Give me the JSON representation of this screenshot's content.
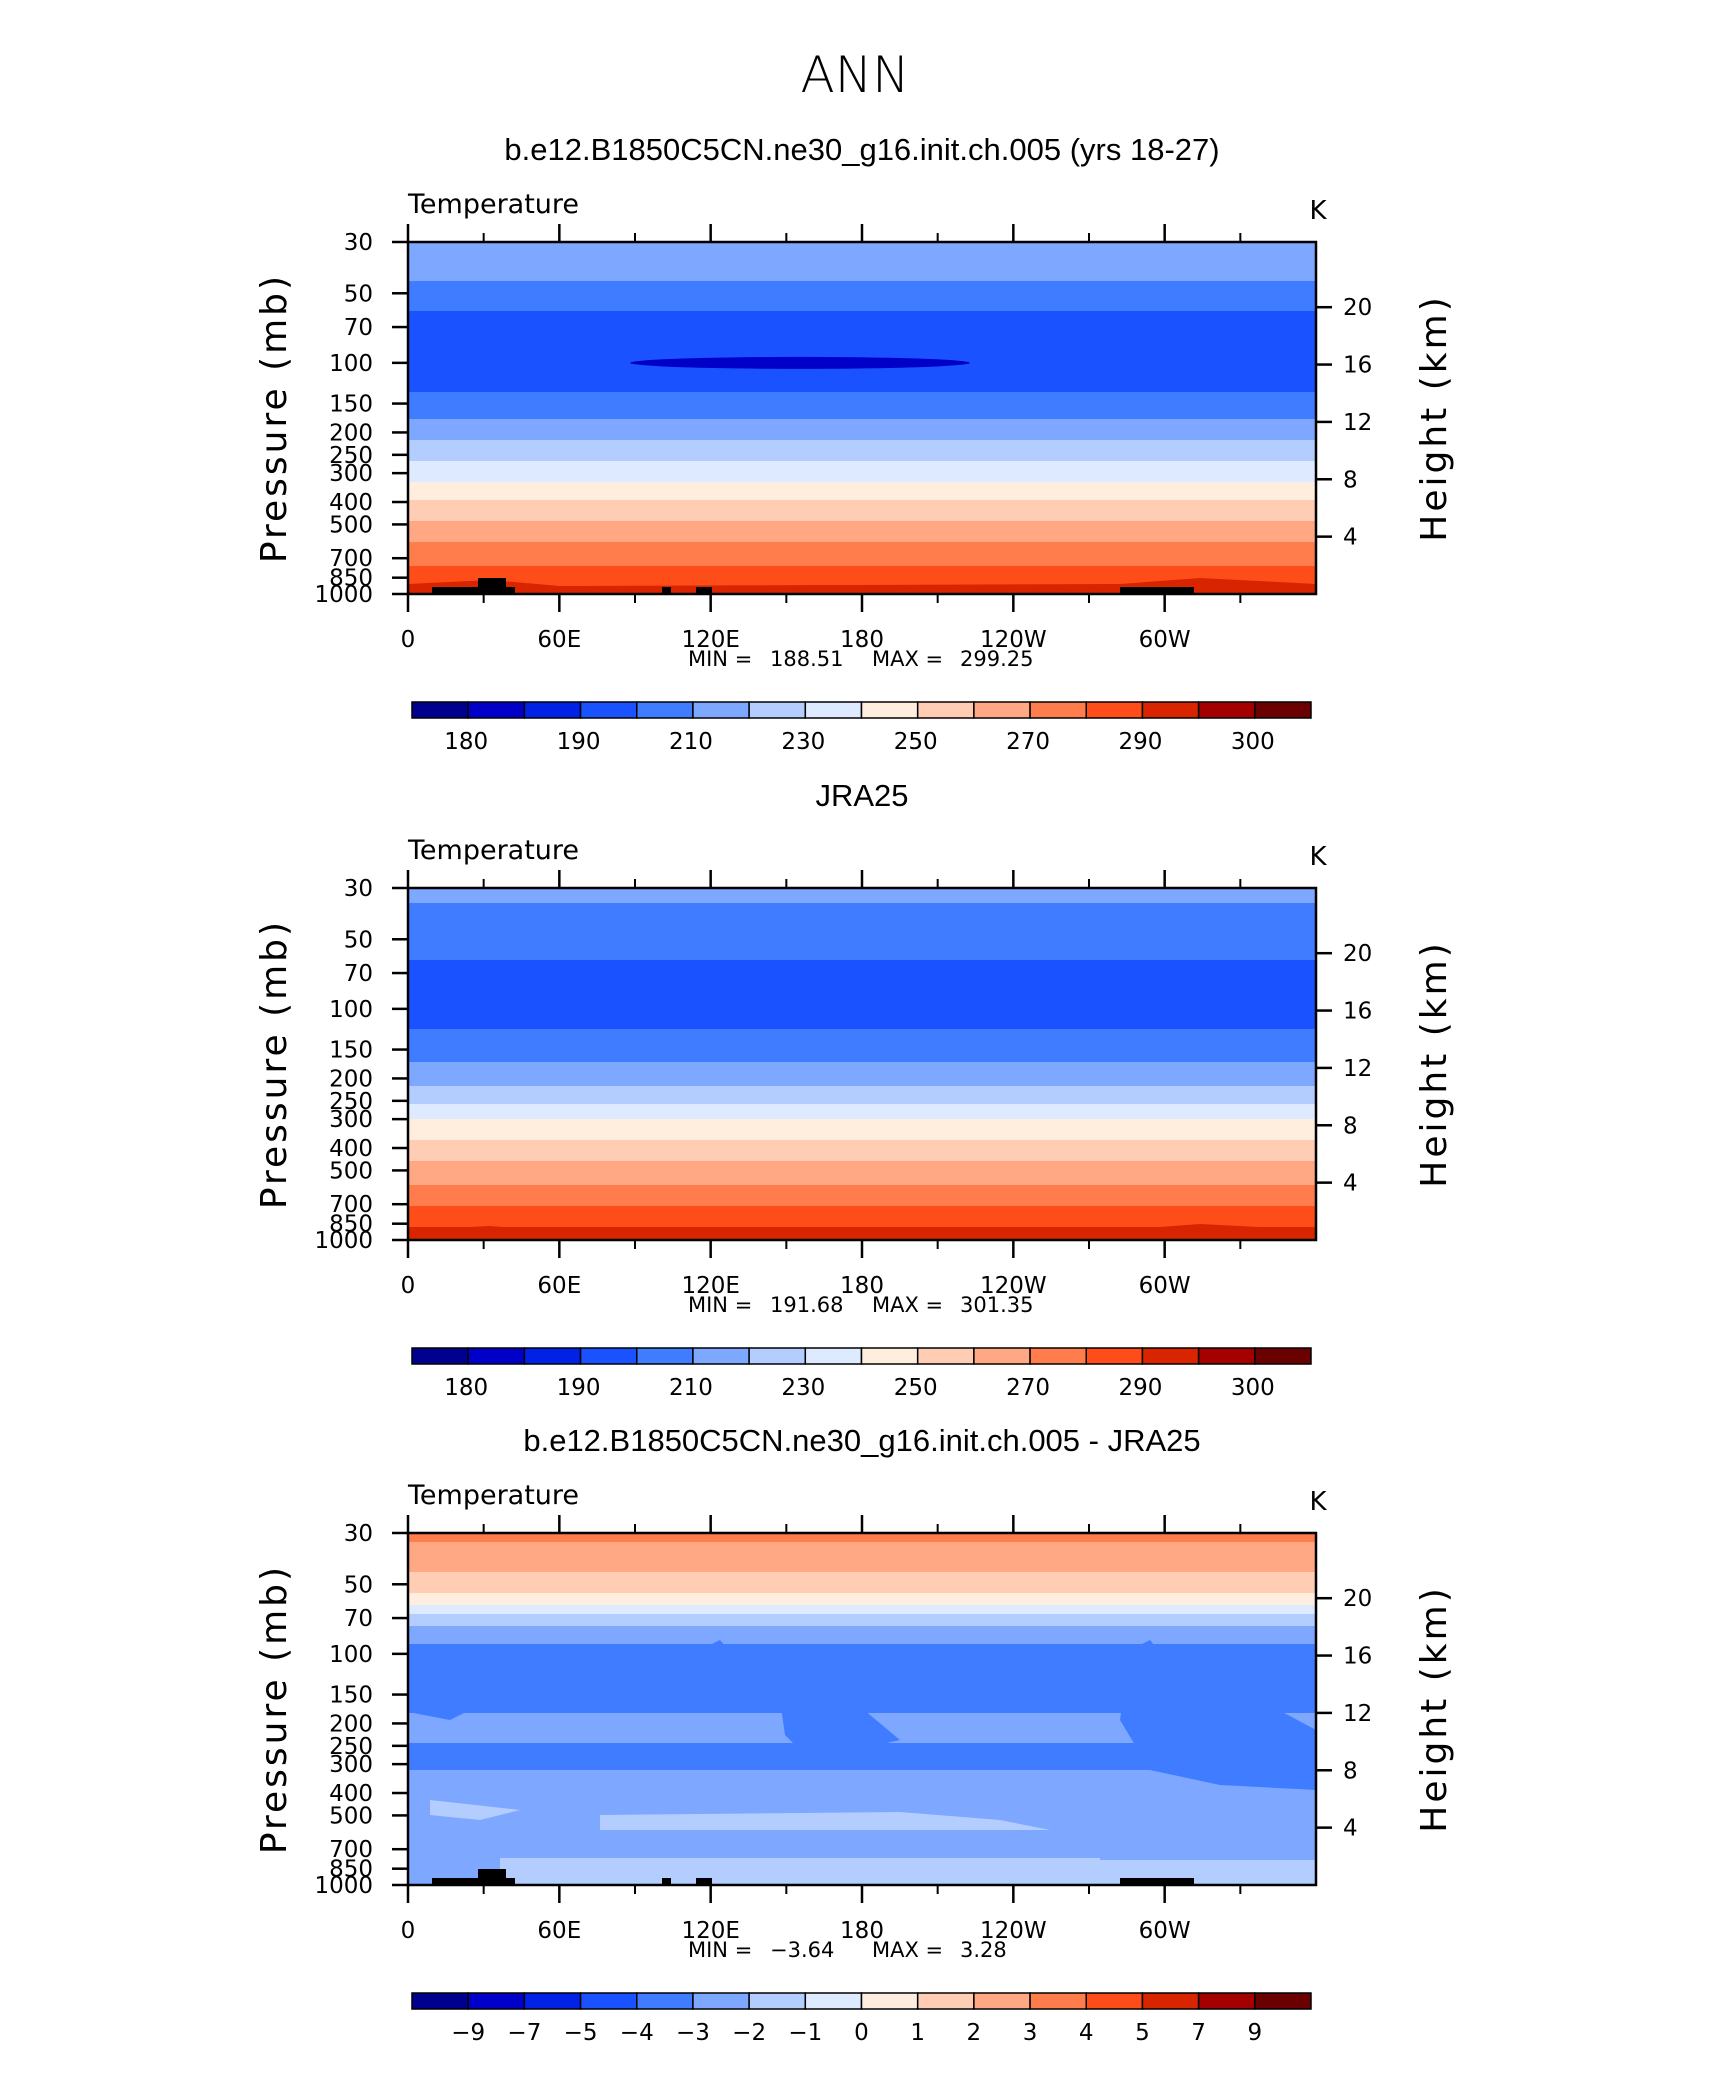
{
  "figure": {
    "title": "ANN"
  },
  "colors": {
    "temperature_scale": [
      "#00008f",
      "#0000c8",
      "#0022e6",
      "#1a52ff",
      "#3f7cff",
      "#7ea8ff",
      "#b3cdff",
      "#deeaff",
      "#ffeedd",
      "#ffcdb3",
      "#ffa883",
      "#ff7d4c",
      "#ff4d1a",
      "#d92400",
      "#a40000",
      "#6b0000"
    ],
    "land_mask": "#000000"
  },
  "chart_data": [
    {
      "type": "contour",
      "title": "b.e12.B1850C5CN.ne30_g16.init.ch.005 (yrs 18-27)",
      "variable": "Temperature",
      "units": "K",
      "ylabel": "Pressure (mb)",
      "y2label": "Height (km)",
      "x_ticks": [
        "0",
        "60E",
        "120E",
        "180",
        "120W",
        "60W"
      ],
      "y_ticks": [
        "30",
        "50",
        "70",
        "100",
        "150",
        "200",
        "250",
        "300",
        "400",
        "500",
        "700",
        "850",
        "1000"
      ],
      "y2_ticks": [
        "20",
        "16",
        "12",
        "8",
        "4"
      ],
      "stats": {
        "min_label": "MIN",
        "min": "188.51",
        "max_label": "MAX",
        "max": "299.25"
      },
      "colorbar_labels": [
        "180",
        "190",
        "210",
        "230",
        "250",
        "270",
        "290",
        "300"
      ],
      "colorbar_levels": [
        175,
        180,
        185,
        190,
        200,
        210,
        220,
        230,
        240,
        250,
        260,
        270,
        280,
        290,
        295,
        300,
        305
      ],
      "profile_p": [
        30,
        40,
        55,
        70,
        100,
        150,
        200,
        250,
        300,
        400,
        500,
        600,
        700,
        850,
        925,
        1000
      ],
      "profile_T": [
        214,
        213,
        202,
        196,
        194,
        202,
        216,
        226,
        236,
        251,
        262,
        270,
        277,
        286,
        290,
        294
      ]
    },
    {
      "type": "contour",
      "title": "JRA25",
      "variable": "Temperature",
      "units": "K",
      "ylabel": "Pressure (mb)",
      "y2label": "Height (km)",
      "x_ticks": [
        "0",
        "60E",
        "120E",
        "180",
        "120W",
        "60W"
      ],
      "y_ticks": [
        "30",
        "50",
        "70",
        "100",
        "150",
        "200",
        "250",
        "300",
        "400",
        "500",
        "700",
        "850",
        "1000"
      ],
      "y2_ticks": [
        "20",
        "16",
        "12",
        "8",
        "4"
      ],
      "stats": {
        "min_label": "MIN",
        "min": "191.68",
        "max_label": "MAX",
        "max": "301.35"
      },
      "colorbar_labels": [
        "180",
        "190",
        "210",
        "230",
        "250",
        "270",
        "290",
        "300"
      ],
      "colorbar_levels": [
        175,
        180,
        185,
        190,
        200,
        210,
        220,
        230,
        240,
        250,
        260,
        270,
        280,
        290,
        295,
        300,
        305
      ],
      "profile_p": [
        30,
        40,
        55,
        70,
        100,
        150,
        200,
        250,
        300,
        400,
        500,
        600,
        700,
        850,
        925,
        1000
      ],
      "profile_T": [
        212,
        208,
        202,
        198,
        196,
        204,
        217,
        228,
        240,
        253,
        264,
        272,
        279,
        288,
        292,
        296
      ]
    },
    {
      "type": "contour",
      "title": "b.e12.B1850C5CN.ne30_g16.init.ch.005 - JRA25",
      "variable": "Temperature",
      "units": "K",
      "ylabel": "Pressure (mb)",
      "y2label": "Height (km)",
      "x_ticks": [
        "0",
        "60E",
        "120E",
        "180",
        "120W",
        "60W"
      ],
      "y_ticks": [
        "30",
        "50",
        "70",
        "100",
        "150",
        "200",
        "250",
        "300",
        "400",
        "500",
        "700",
        "850",
        "1000"
      ],
      "y2_ticks": [
        "20",
        "16",
        "12",
        "8",
        "4"
      ],
      "stats": {
        "min_label": "MIN",
        "min": "−3.64",
        "max_label": "MAX",
        "max": "3.28"
      },
      "colorbar_labels": [
        "−9",
        "−7",
        "−5",
        "−4",
        "−3",
        "−2",
        "−1",
        "0",
        "1",
        "2",
        "3",
        "4",
        "5",
        "7",
        "9"
      ],
      "colorbar_levels": [
        -11,
        -9,
        -7,
        -5,
        -4,
        -3,
        -2,
        -1,
        0,
        1,
        2,
        3,
        4,
        5,
        7,
        9,
        11
      ],
      "profile_p": [
        30,
        40,
        50,
        60,
        70,
        100,
        200,
        300,
        400,
        500,
        700,
        850,
        1000
      ],
      "profile_T": [
        3.2,
        2.5,
        1.5,
        0.3,
        -1.5,
        -3.6,
        -2.9,
        -3.1,
        -2.5,
        -2.2,
        -2.6,
        -2.0,
        -2.2
      ]
    }
  ]
}
